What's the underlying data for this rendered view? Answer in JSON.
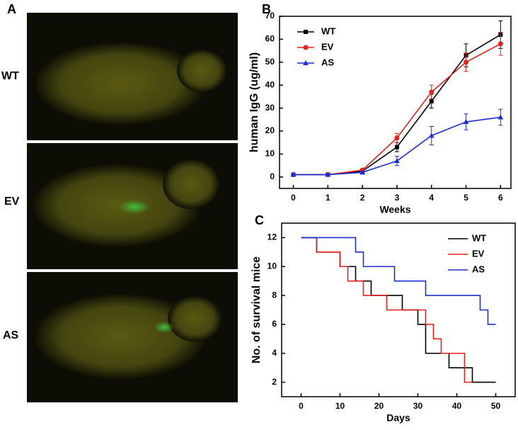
{
  "panel_labels": [
    "A",
    "B",
    "C"
  ],
  "photo_labels": [
    "WT",
    "EV",
    "AS"
  ],
  "chart_data": [
    {
      "type": "line",
      "xlabel": "Weeks",
      "ylabel": "human IgG (ug/ml)",
      "x": [
        0,
        1,
        2,
        3,
        4,
        5,
        6
      ],
      "xlim": [
        -0.4,
        6.3
      ],
      "xticks": [
        0,
        1,
        2,
        3,
        4,
        5,
        6
      ],
      "ylim": [
        -5,
        70
      ],
      "yticks": [
        0,
        10,
        20,
        30,
        40,
        50,
        60,
        70
      ],
      "legend": "upper left",
      "series": [
        {
          "name": "WT",
          "color": "#000000",
          "marker": "square",
          "values": [
            1,
            1,
            2.5,
            13,
            33,
            53,
            62
          ],
          "errors": [
            0.5,
            0.5,
            0.5,
            2,
            3,
            5,
            6
          ]
        },
        {
          "name": "EV",
          "color": "#e8201c",
          "marker": "circle",
          "values": [
            1,
            1,
            3,
            17,
            37,
            50,
            58
          ],
          "errors": [
            0.5,
            0.5,
            0.5,
            2,
            3,
            4,
            5
          ]
        },
        {
          "name": "AS",
          "color": "#1f2fd6",
          "marker": "triangle",
          "values": [
            1,
            1,
            2,
            7,
            18,
            24,
            26
          ],
          "errors": [
            0.5,
            0.5,
            0.5,
            2,
            4,
            3.5,
            3.5
          ]
        }
      ]
    },
    {
      "type": "step",
      "xlabel": "Days",
      "ylabel": "No. of survival mice",
      "xlim": [
        -5,
        55
      ],
      "xticks": [
        0,
        10,
        20,
        30,
        40,
        50
      ],
      "ylim": [
        1,
        13
      ],
      "yticks": [
        2,
        4,
        6,
        8,
        10,
        12
      ],
      "legend": "upper right",
      "series": [
        {
          "name": "WT",
          "color": "#000000",
          "x": [
            0,
            4,
            10,
            14,
            18,
            26,
            30,
            32,
            38,
            44,
            50
          ],
          "values": [
            12,
            11,
            10,
            9,
            8,
            7,
            6,
            4,
            3,
            2,
            2
          ]
        },
        {
          "name": "EV",
          "color": "#e8201c",
          "x": [
            0,
            4,
            10,
            12,
            16,
            22,
            32,
            34,
            36,
            42,
            44
          ],
          "values": [
            12,
            11,
            10,
            9,
            8,
            7,
            6,
            5,
            4,
            2,
            2
          ]
        },
        {
          "name": "AS",
          "color": "#1f2fd6",
          "x": [
            0,
            14,
            16,
            24,
            32,
            46,
            48,
            50
          ],
          "values": [
            12,
            11,
            10,
            9,
            8,
            7,
            6,
            6
          ]
        }
      ]
    }
  ]
}
